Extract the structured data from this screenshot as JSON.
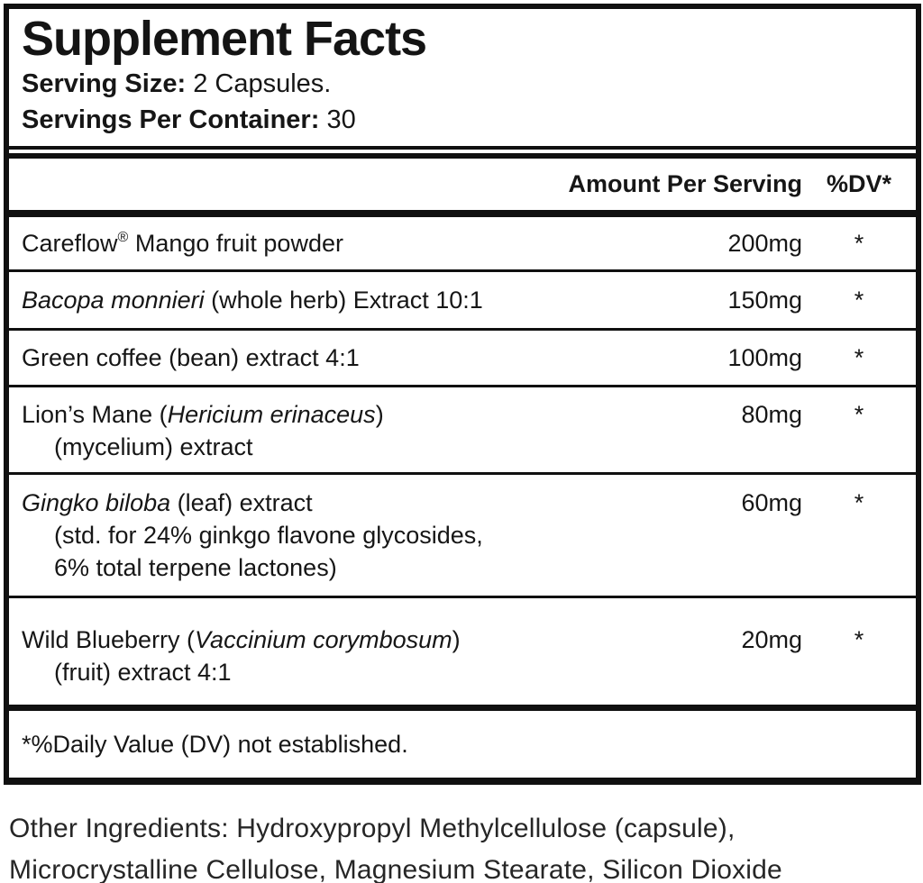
{
  "supplement_facts": {
    "title": "Supplement Facts",
    "serving_size": {
      "label": "Serving Size:",
      "value": "2 Capsules."
    },
    "servings_per_container": {
      "label": "Servings Per Container:",
      "value": "30"
    },
    "columns": {
      "amount": "Amount Per Serving",
      "dv": "%DV*"
    },
    "rows": [
      {
        "name_plain_1": "Careflow",
        "trademark": "®",
        "name_plain_2": " Mango fruit powder",
        "amount": "200mg",
        "dv": "*"
      },
      {
        "name_italic": "Bacopa monnieri",
        "name_plain_2": " (whole herb) Extract 10:1",
        "amount": "150mg",
        "dv": "*"
      },
      {
        "name_plain_1": "Green coffee (bean) extract 4:1",
        "amount": "100mg",
        "dv": "*"
      },
      {
        "name_plain_1": "Lion’s Mane (",
        "name_italic": "Hericium erinaceus",
        "name_plain_2": ")",
        "line2": "(mycelium) extract",
        "amount": "80mg",
        "dv": "*"
      },
      {
        "name_italic": "Gingko biloba",
        "name_plain_2": " (leaf) extract",
        "line2": "(std. for 24% ginkgo flavone glycosides,",
        "line3": "6% total terpene lactones)",
        "amount": "60mg",
        "dv": "*"
      },
      {
        "name_plain_1": "Wild Blueberry (",
        "name_italic": "Vaccinium corymbosum",
        "name_plain_2": ")",
        "line2": "(fruit) extract 4:1",
        "amount": "20mg",
        "dv": "*"
      }
    ],
    "footnote": "*%Daily Value (DV) not established."
  },
  "other_ingredients": "Other Ingredients: Hydroxypropyl Methylcellulose (capsule), Microcrystalline Cellulose, Magnesium Stearate, Silicon Dioxide",
  "colors": {
    "text": "#161616",
    "border": "#101010",
    "background": "#ffffff"
  }
}
